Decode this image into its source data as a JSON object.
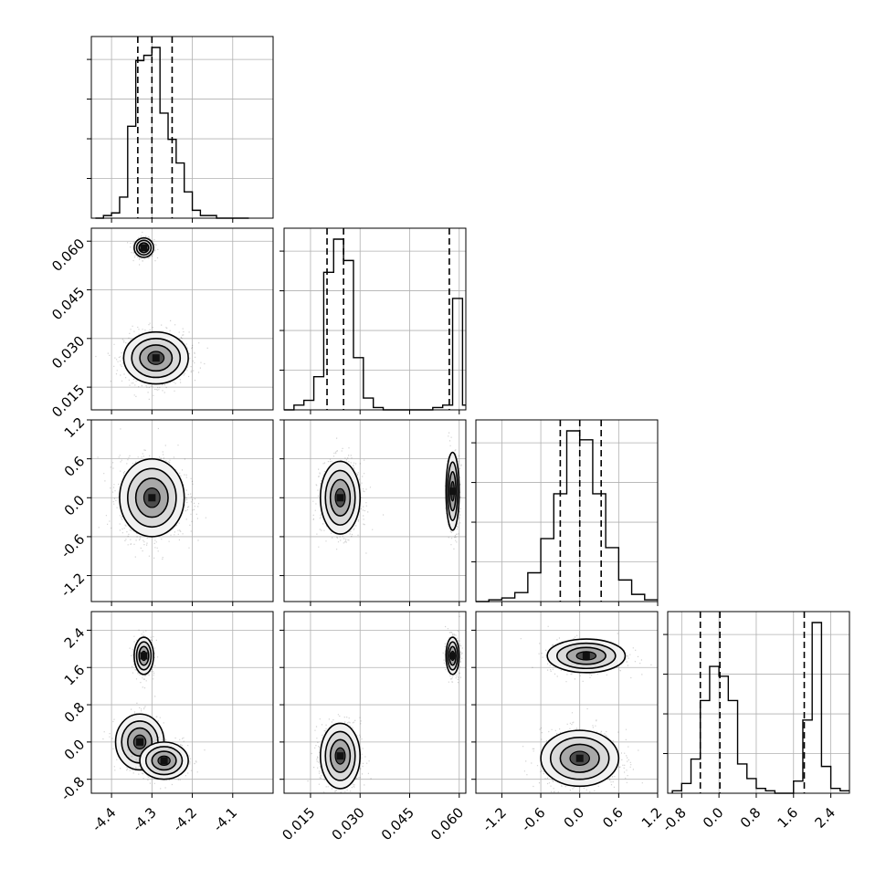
{
  "figure": {
    "kind": "corner plot",
    "n_parameters": 4,
    "quantile_lines": "dashed",
    "grid": true,
    "colors": {
      "ink": "#000000",
      "grid": "#b0b0b0",
      "background": "#ffffff"
    }
  },
  "chart_data": [
    {
      "type": "histogram",
      "panel": "hist-p0",
      "xlim": [
        -4.45,
        -4.0
      ],
      "x_ticks": [
        "-4.4",
        "-4.3",
        "-4.2",
        "-4.1"
      ],
      "bins": [
        -4.44,
        -4.42,
        -4.4,
        -4.38,
        -4.36,
        -4.34,
        -4.32,
        -4.3,
        -4.28,
        -4.26,
        -4.24,
        -4.22,
        -4.2,
        -4.18,
        -4.16,
        -4.14,
        -4.12,
        -4.1,
        -4.08,
        -4.06
      ],
      "counts": [
        0,
        1,
        2,
        8,
        35,
        60,
        62,
        65,
        40,
        30,
        21,
        10,
        3,
        1,
        1,
        0,
        0,
        0,
        0
      ],
      "quantiles": [
        -4.335,
        -4.3,
        -4.25
      ]
    },
    {
      "type": "histogram",
      "panel": "hist-p1",
      "xlim": [
        0.007,
        0.062
      ],
      "x_ticks": [
        "0.015",
        "0.030",
        "0.045",
        "0.060"
      ],
      "bins": [
        0.007,
        0.01,
        0.013,
        0.016,
        0.019,
        0.022,
        0.025,
        0.028,
        0.031,
        0.034,
        0.037,
        0.04,
        0.043,
        0.046,
        0.049,
        0.052,
        0.055,
        0.058,
        0.061,
        0.062
      ],
      "counts": [
        0,
        2,
        4,
        14,
        58,
        72,
        63,
        22,
        5,
        1,
        0,
        0,
        0,
        0,
        0,
        1,
        2,
        47,
        2
      ],
      "quantiles": [
        0.02,
        0.025,
        0.057
      ]
    },
    {
      "type": "histogram",
      "panel": "hist-p2",
      "xlim": [
        -1.6,
        1.2
      ],
      "x_ticks": [
        "-1.2",
        "-0.6",
        "0.0",
        "0.6",
        "1.2"
      ],
      "bins": [
        -1.6,
        -1.4,
        -1.2,
        -1.0,
        -0.8,
        -0.6,
        -0.4,
        -0.2,
        0.0,
        0.2,
        0.4,
        0.6,
        0.8,
        1.0,
        1.2
      ],
      "counts": [
        0,
        1,
        2,
        5,
        16,
        35,
        60,
        95,
        90,
        60,
        30,
        12,
        4,
        1
      ],
      "quantiles": [
        -0.3,
        0.0,
        0.33
      ]
    },
    {
      "type": "histogram",
      "panel": "hist-p3",
      "xlim": [
        -1.1,
        2.8
      ],
      "x_ticks": [
        "-0.8",
        "0.0",
        "0.8",
        "1.6",
        "2.4"
      ],
      "bins": [
        -1.0,
        -0.8,
        -0.6,
        -0.4,
        -0.2,
        0.0,
        0.2,
        0.4,
        0.6,
        0.8,
        1.0,
        1.2,
        1.4,
        1.6,
        1.8,
        2.0,
        2.2,
        2.4,
        2.6,
        2.8
      ],
      "counts": [
        1,
        4,
        14,
        38,
        52,
        48,
        38,
        12,
        6,
        2,
        1,
        0,
        0,
        5,
        30,
        70,
        11,
        2,
        1
      ],
      "quantiles": [
        -0.4,
        0.02,
        1.83
      ]
    },
    {
      "type": "scatter",
      "panel": "scatter-p0-p1",
      "xlim": [
        -4.45,
        -4.0
      ],
      "ylim": [
        0.008,
        0.064
      ],
      "y_ticks": [
        "0.015",
        "0.030",
        "0.045",
        "0.060"
      ],
      "clusters": [
        {
          "x": -4.32,
          "y": 0.058,
          "sx": 0.012,
          "sy": 0.0015,
          "w": 0.35
        },
        {
          "x": -4.29,
          "y": 0.024,
          "sx": 0.04,
          "sy": 0.004,
          "w": 0.65
        }
      ]
    },
    {
      "type": "scatter",
      "panel": "scatter-p0-p2",
      "xlim": [
        -4.45,
        -4.0
      ],
      "ylim": [
        -1.6,
        1.2
      ],
      "y_ticks": [
        "-1.2",
        "-0.6",
        "0.0",
        "0.6",
        "1.2"
      ],
      "clusters": [
        {
          "x": -4.3,
          "y": 0.0,
          "sx": 0.04,
          "sy": 0.3,
          "w": 1.0
        }
      ]
    },
    {
      "type": "scatter",
      "panel": "scatter-p1-p2",
      "xlim": [
        0.007,
        0.062
      ],
      "ylim": [
        -1.6,
        1.2
      ],
      "clusters": [
        {
          "x": 0.024,
          "y": 0.0,
          "sx": 0.003,
          "sy": 0.28,
          "w": 0.65
        },
        {
          "x": 0.058,
          "y": 0.1,
          "sx": 0.001,
          "sy": 0.3,
          "w": 0.35
        }
      ]
    },
    {
      "type": "scatter",
      "panel": "scatter-p0-p3",
      "xlim": [
        -4.45,
        -4.0
      ],
      "ylim": [
        -1.1,
        2.8
      ],
      "y_ticks": [
        "-0.8",
        "0.0",
        "0.8",
        "1.6",
        "2.4"
      ],
      "clusters": [
        {
          "x": -4.32,
          "y": 1.85,
          "sx": 0.012,
          "sy": 0.2,
          "w": 0.35
        },
        {
          "x": -4.33,
          "y": 0.0,
          "sx": 0.03,
          "sy": 0.3,
          "w": 0.3
        },
        {
          "x": -4.27,
          "y": -0.4,
          "sx": 0.03,
          "sy": 0.2,
          "w": 0.35
        }
      ]
    },
    {
      "type": "scatter",
      "panel": "scatter-p1-p3",
      "xlim": [
        0.007,
        0.062
      ],
      "ylim": [
        -1.1,
        2.8
      ],
      "clusters": [
        {
          "x": 0.058,
          "y": 1.85,
          "sx": 0.001,
          "sy": 0.2,
          "w": 0.35
        },
        {
          "x": 0.024,
          "y": -0.3,
          "sx": 0.003,
          "sy": 0.35,
          "w": 0.65
        }
      ]
    },
    {
      "type": "scatter",
      "panel": "scatter-p2-p3",
      "xlim": [
        -1.6,
        1.2
      ],
      "ylim": [
        -1.1,
        2.8
      ],
      "clusters": [
        {
          "x": 0.1,
          "y": 1.85,
          "sx": 0.3,
          "sy": 0.18,
          "w": 0.35
        },
        {
          "x": 0.0,
          "y": -0.35,
          "sx": 0.3,
          "sy": 0.3,
          "w": 0.65
        }
      ]
    }
  ]
}
